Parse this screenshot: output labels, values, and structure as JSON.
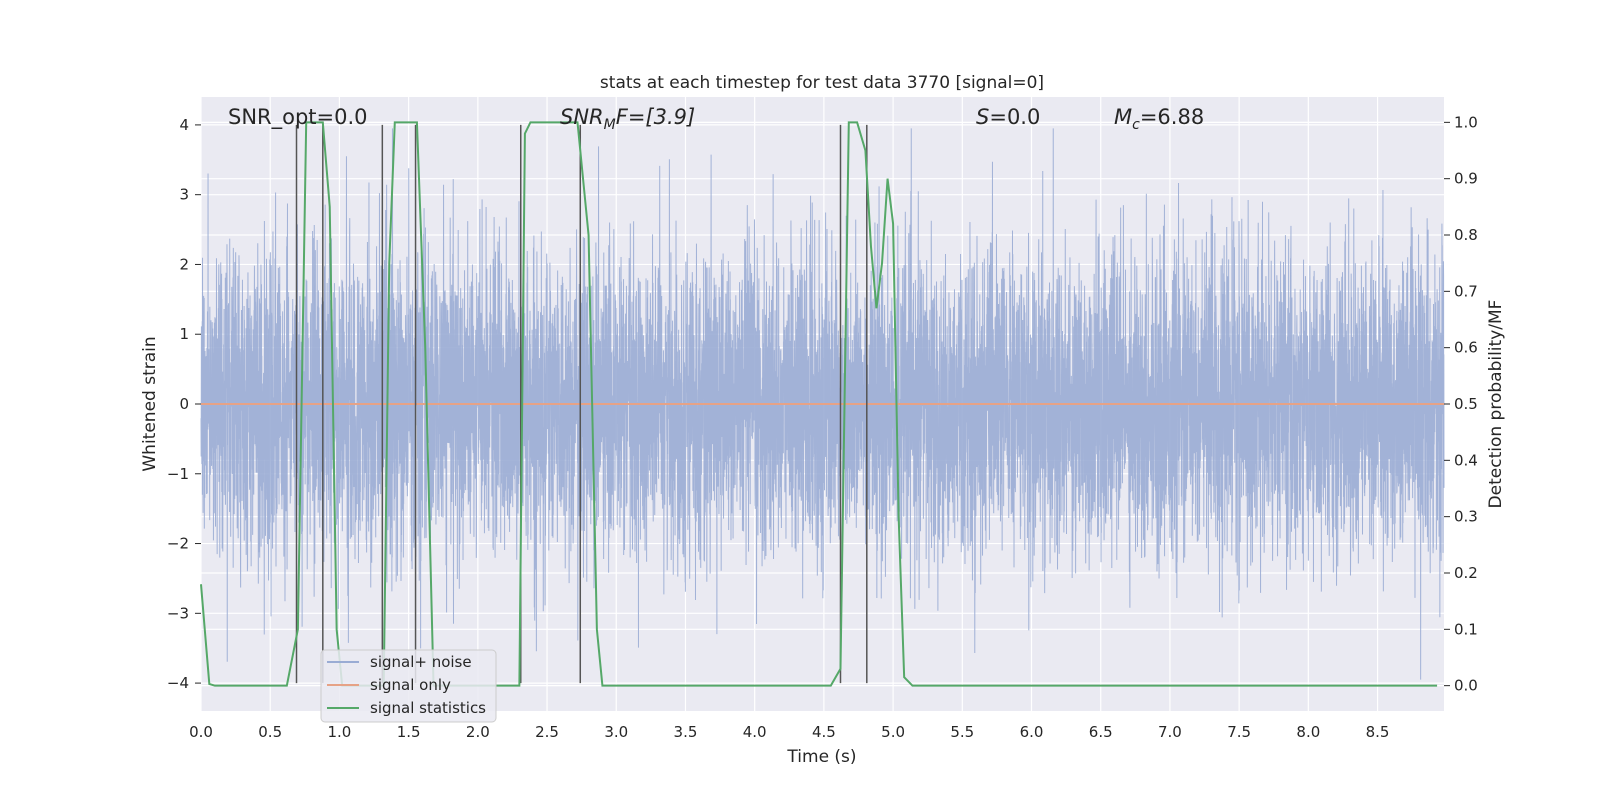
{
  "chart_data": {
    "type": "line",
    "title": "stats at each timestep for test data 3770 [signal=0]",
    "xlabel": "Time (s)",
    "ylabel": "Whitened strain",
    "ylabel_right": "Detection probability/MF",
    "xlim": [
      0.0,
      8.98
    ],
    "ylim": [
      -4.4,
      4.4
    ],
    "ylim_right": [
      -0.045,
      1.045
    ],
    "xticks": [
      "0.0",
      "0.5",
      "1.0",
      "1.5",
      "2.0",
      "2.5",
      "3.0",
      "3.5",
      "4.0",
      "4.5",
      "5.0",
      "5.5",
      "6.0",
      "6.5",
      "7.0",
      "7.5",
      "8.0",
      "8.5"
    ],
    "yticks_left": [
      "−4",
      "−3",
      "−2",
      "−1",
      "0",
      "1",
      "2",
      "3",
      "4"
    ],
    "yticks_right": [
      "0.0",
      "0.1",
      "0.2",
      "0.3",
      "0.4",
      "0.5",
      "0.6",
      "0.7",
      "0.8",
      "0.9",
      "1.0"
    ],
    "grid": true,
    "legend_position": "lower-left",
    "annotations": {
      "snr_opt": "SNR_opt=0.0",
      "snr_mf_prefix": "SNR",
      "snr_mf_sub": "M",
      "snr_mf_rest": "F=[3.9]",
      "s_label": "S",
      "s_rest": "=0.0",
      "mc_label": "M",
      "mc_sub": "c",
      "mc_rest": "=6.88"
    },
    "series": [
      {
        "name": "signal+ noise",
        "color": "#9aacd4",
        "description_range": [
          -4.0,
          4.0
        ],
        "sample_rate_hz": 1000
      },
      {
        "name": "signal only",
        "color": "#e6a286",
        "x": [
          0.0,
          8.98
        ],
        "y": [
          0.0,
          0.0
        ]
      },
      {
        "name": "signal statistics",
        "color": "#55a868",
        "axis": "right",
        "x": [
          0.0,
          0.06,
          0.1,
          0.62,
          0.7,
          0.76,
          0.83,
          0.88,
          0.93,
          0.98,
          1.02,
          1.1,
          1.3,
          1.32,
          1.36,
          1.4,
          1.56,
          1.62,
          1.68,
          2.3,
          2.34,
          2.38,
          2.42,
          2.72,
          2.8,
          2.86,
          2.9,
          4.55,
          4.62,
          4.68,
          4.74,
          4.8,
          4.84,
          4.88,
          4.92,
          4.96,
          5.0,
          5.04,
          5.08,
          5.14,
          8.93
        ],
        "y": [
          0.18,
          0.003,
          0.0,
          0.0,
          0.1,
          1.0,
          1.0,
          1.0,
          0.85,
          0.1,
          0.0,
          0.0,
          0.0,
          0.0,
          0.75,
          1.0,
          1.0,
          0.6,
          0.0,
          0.0,
          0.98,
          1.0,
          1.0,
          1.0,
          0.8,
          0.1,
          0.0,
          0.0,
          0.03,
          1.0,
          1.0,
          0.95,
          0.78,
          0.67,
          0.75,
          0.9,
          0.82,
          0.3,
          0.015,
          0.0,
          0.0
        ]
      }
    ],
    "vertical_lines": {
      "color": "#555555",
      "x": [
        0.69,
        0.88,
        1.31,
        1.55,
        2.31,
        2.74,
        4.62,
        4.81
      ],
      "y_range": [
        -4.0,
        4.0
      ]
    }
  }
}
